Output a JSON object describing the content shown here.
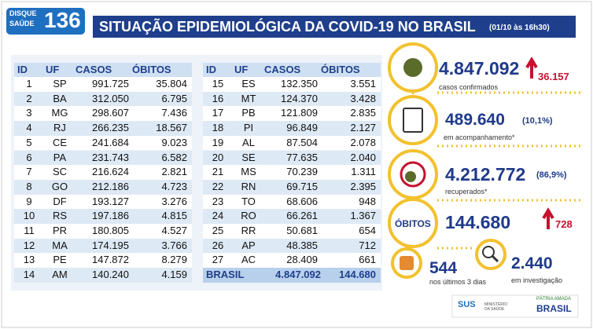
{
  "header": {
    "logo_top": "DISQUE",
    "logo_bottom": "SAÚDE",
    "logo_number": "136",
    "title": "SITUAÇÃO EPIDEMIOLÓGICA DA COVID-19 NO BRASIL",
    "timestamp": "(01/10 às 16h30)"
  },
  "table": {
    "columns": [
      "ID",
      "UF",
      "CASOS",
      "ÓBITOS"
    ],
    "rows": [
      [
        "1",
        "SP",
        "991.725",
        "35.804"
      ],
      [
        "2",
        "BA",
        "312.050",
        "6.795"
      ],
      [
        "3",
        "MG",
        "298.607",
        "7.436"
      ],
      [
        "4",
        "RJ",
        "266.235",
        "18.567"
      ],
      [
        "5",
        "CE",
        "241.684",
        "9.023"
      ],
      [
        "6",
        "PA",
        "231.743",
        "6.582"
      ],
      [
        "7",
        "SC",
        "216.624",
        "2.821"
      ],
      [
        "8",
        "GO",
        "212.186",
        "4.723"
      ],
      [
        "9",
        "DF",
        "193.127",
        "3.276"
      ],
      [
        "10",
        "RS",
        "197.186",
        "4.815"
      ],
      [
        "11",
        "PR",
        "180.805",
        "4.527"
      ],
      [
        "12",
        "MA",
        "174.195",
        "3.766"
      ],
      [
        "13",
        "PE",
        "147.872",
        "8.279"
      ],
      [
        "14",
        "AM",
        "140.240",
        "4.159"
      ],
      [
        "15",
        "ES",
        "132.350",
        "3.551"
      ],
      [
        "16",
        "MT",
        "124.370",
        "3.428"
      ],
      [
        "17",
        "PB",
        "121.809",
        "2.835"
      ],
      [
        "18",
        "PI",
        "96.849",
        "2.127"
      ],
      [
        "19",
        "AL",
        "87.504",
        "2.078"
      ],
      [
        "20",
        "SE",
        "77.635",
        "2.040"
      ],
      [
        "21",
        "MS",
        "70.239",
        "1.311"
      ],
      [
        "22",
        "RN",
        "69.715",
        "2.395"
      ],
      [
        "23",
        "TO",
        "68.606",
        "948"
      ],
      [
        "24",
        "RO",
        "66.261",
        "1.367"
      ],
      [
        "25",
        "RR",
        "50.681",
        "654"
      ],
      [
        "26",
        "AP",
        "48.385",
        "712"
      ],
      [
        "27",
        "AC",
        "28.409",
        "661"
      ]
    ],
    "total": [
      "BRASIL",
      "4.847.092",
      "144.680"
    ]
  },
  "stats": {
    "confirmed": {
      "value": "4.847.092",
      "increase": "36.157",
      "label": "casos confirmados"
    },
    "monitoring": {
      "value": "489.640",
      "percent": "(10,1%)",
      "label": "em acompanhamento*"
    },
    "recovered": {
      "value": "4.212.772",
      "percent": "(86,9%)",
      "label": "recuperados*"
    },
    "deaths": {
      "title": "ÓBITOS",
      "value": "144.680",
      "increase": "728"
    },
    "recent": {
      "value": "544",
      "label": "nos últimos 3 dias"
    },
    "investigation": {
      "value": "2.440",
      "label": "em investigação"
    }
  },
  "footer": {
    "sus": "SUS",
    "ministry": "MINISTÉRIO DA SAÚDE",
    "motto": "PÁTRIA AMADA",
    "country": "BRASIL"
  }
}
